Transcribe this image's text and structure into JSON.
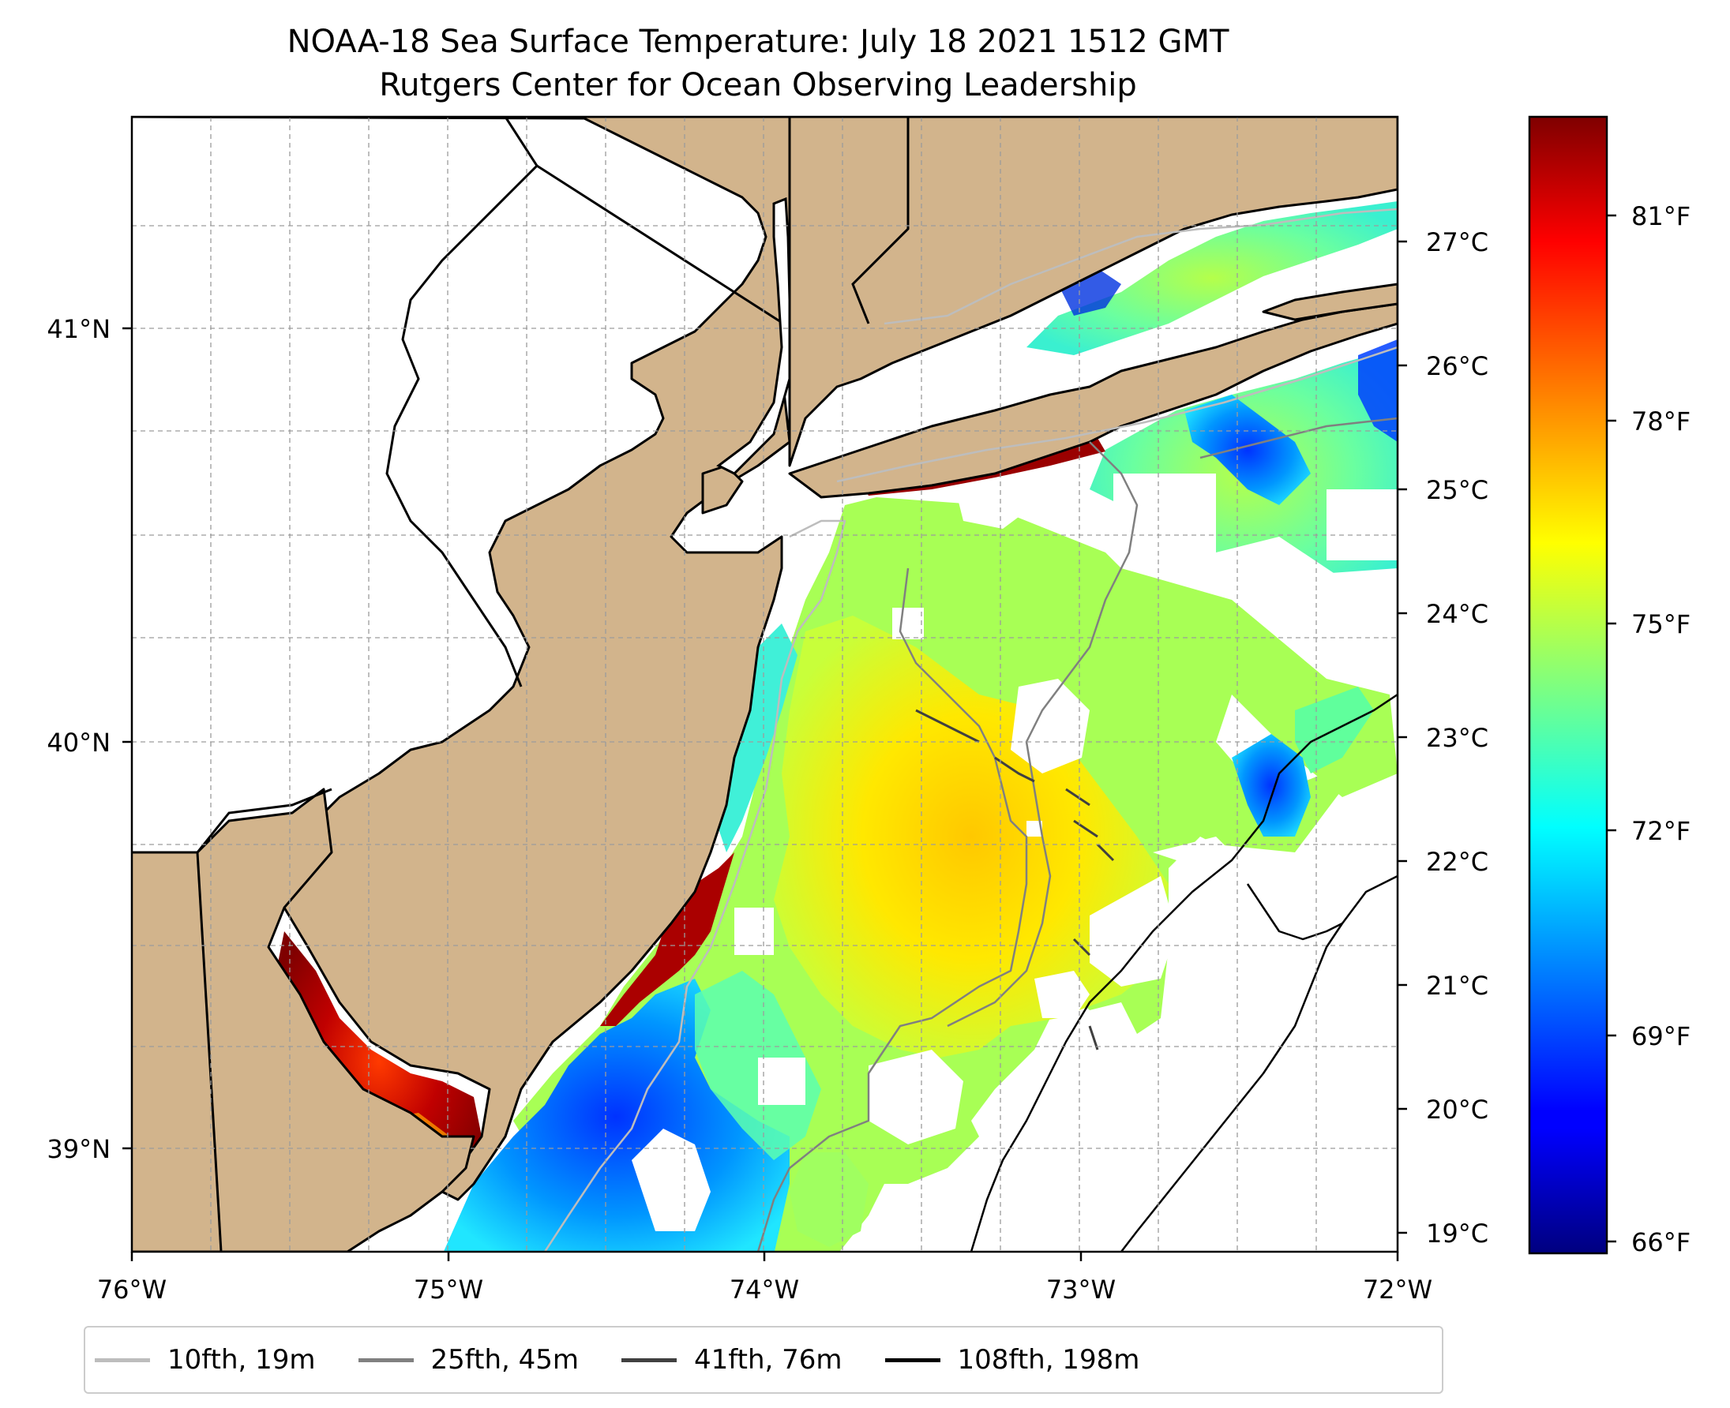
{
  "title": {
    "line1": "NOAA-18 Sea Surface Temperature: July 18 2021 1512 GMT",
    "line2": "Rutgers Center for Ocean Observing Leadership"
  },
  "map": {
    "lon_range": [
      -76,
      -72
    ],
    "lat_range": [
      38.75,
      41.5
    ],
    "land_color": "#d2b48c",
    "coast_color": "#000000",
    "gridlines": true,
    "x_ticks": [
      "76°W",
      "75°W",
      "74°W",
      "73°W",
      "72°W"
    ],
    "y_ticks": [
      "41°N",
      "40°N",
      "39°N"
    ]
  },
  "colorbar": {
    "colormap": "jet",
    "celsius_ticks": [
      "27°C",
      "26°C",
      "25°C",
      "24°C",
      "23°C",
      "22°C",
      "21°C",
      "20°C",
      "19°C"
    ],
    "fahrenheit_ticks": [
      "81°F",
      "78°F",
      "75°F",
      "72°F",
      "69°F",
      "66°F"
    ]
  },
  "legend": {
    "placement": "bottom",
    "items": [
      {
        "label": "10fth, 19m",
        "color": "#bdbdbd"
      },
      {
        "label": "25fth, 45m",
        "color": "#808080"
      },
      {
        "label": "41fth, 76m",
        "color": "#404040"
      },
      {
        "label": "108fth, 198m",
        "color": "#000000"
      }
    ]
  }
}
